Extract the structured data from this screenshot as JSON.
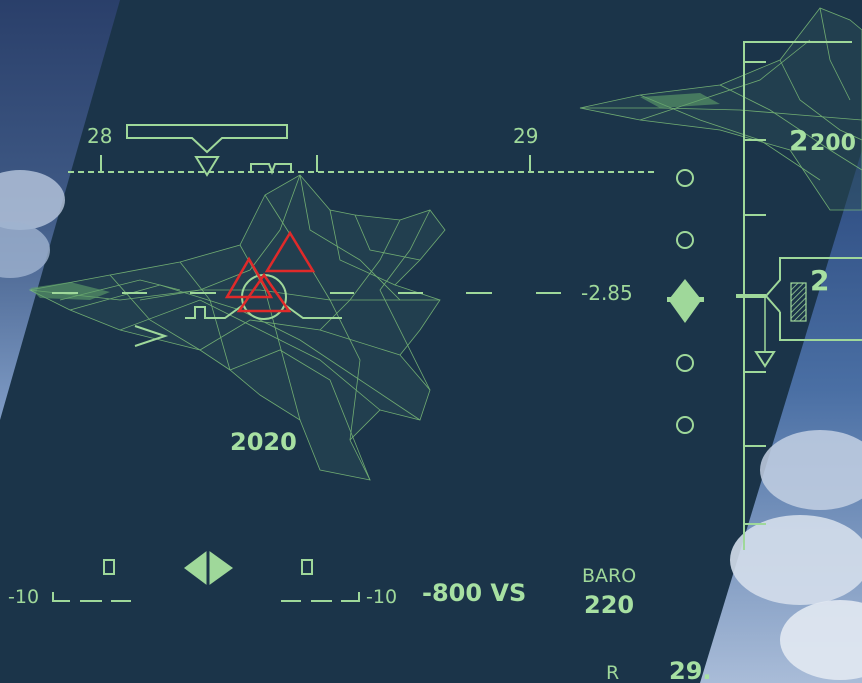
{
  "colors": {
    "hud_green": "#9fd89a",
    "mesh_green": "#7fc27a",
    "target_red": "#e02a2a",
    "sky_dark": "#1b3449"
  },
  "heading": {
    "left_label": "28",
    "right_label": "29"
  },
  "pitch": {
    "value_label": "-2.85",
    "lower_left_label": "-10",
    "lower_right_label": "-10"
  },
  "target": {
    "range_label": "2020"
  },
  "vertical_speed": {
    "label": "-800 VS"
  },
  "baro": {
    "label": "BARO",
    "value": "220"
  },
  "altitude": {
    "tape_reading_big": "2",
    "tape_reading_small": "200",
    "box_reading": "2"
  },
  "pressure": {
    "r_label": "R",
    "value": "29."
  }
}
